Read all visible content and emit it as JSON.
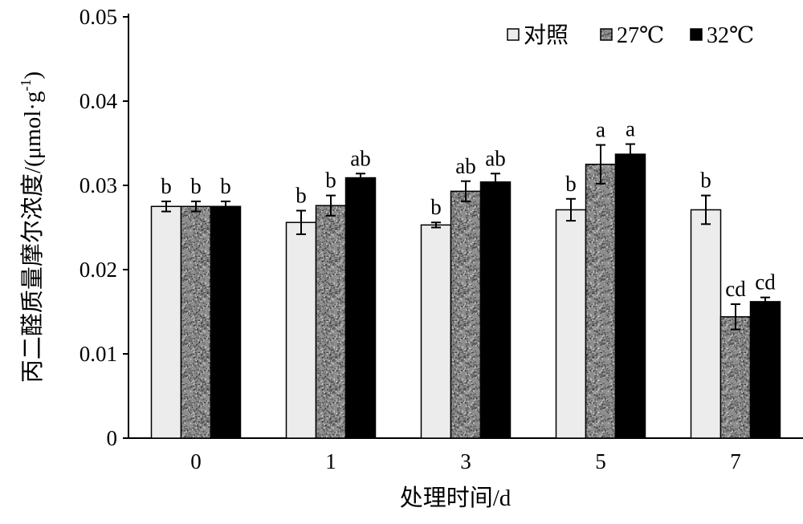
{
  "chart_data": {
    "type": "bar",
    "title": "",
    "xlabel": "处理时间/d",
    "ylabel": "丙二醛质量摩尔浓度/(μmol·g",
    "ylabel_superscript": "-1",
    "ylabel_close": ")",
    "ylim": [
      0,
      0.05
    ],
    "yticks": [
      "0",
      "0.01",
      "0.02",
      "0.03",
      "0.04",
      "0.05"
    ],
    "categories": [
      "0",
      "1",
      "3",
      "5",
      "7"
    ],
    "legend_position": "top-right",
    "series": [
      {
        "name": "对照",
        "color": "#ececec",
        "pattern": "light",
        "values": [
          0.0275,
          0.0256,
          0.0253,
          0.0271,
          0.0271
        ],
        "errors": [
          0.0006,
          0.0014,
          0.0003,
          0.0013,
          0.0017
        ],
        "labels": [
          "b",
          "b",
          "b",
          "b",
          "b"
        ]
      },
      {
        "name": "27℃",
        "color": "#8c8c8c",
        "pattern": "speckled-gray",
        "values": [
          0.0275,
          0.0276,
          0.0293,
          0.0325,
          0.0144
        ],
        "errors": [
          0.0006,
          0.0012,
          0.0012,
          0.0023,
          0.0015
        ],
        "labels": [
          "b",
          "b",
          "ab",
          "a",
          "cd"
        ]
      },
      {
        "name": "32℃",
        "color": "#000000",
        "pattern": "solid-black",
        "values": [
          0.0275,
          0.0309,
          0.0304,
          0.0337,
          0.0162
        ],
        "errors": [
          0.0006,
          0.0005,
          0.001,
          0.0012,
          0.0005
        ],
        "labels": [
          "b",
          "ab",
          "ab",
          "a",
          "cd"
        ]
      }
    ]
  }
}
